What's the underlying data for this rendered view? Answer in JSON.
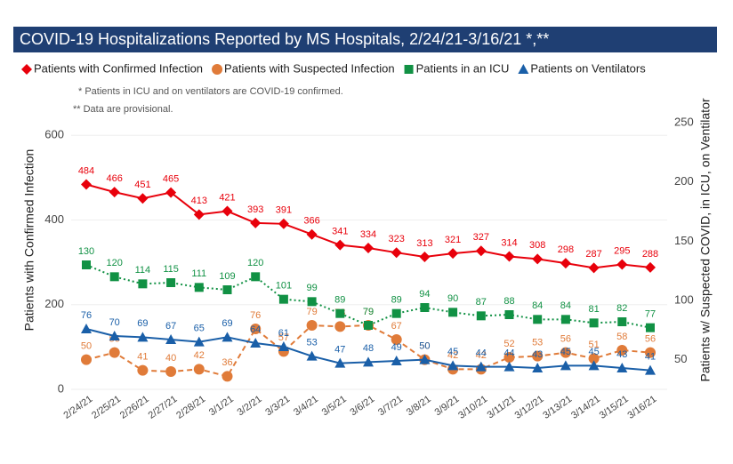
{
  "chart_data": {
    "type": "line",
    "title": "COVID-19 Hospitalizations Reported by MS Hospitals, 2/24/21-3/16/21 *,**",
    "notes": [
      "* Patients in ICU and on ventilators are COVID-19 confirmed.",
      "** Data are provisional."
    ],
    "ylabel": "Patients with Confirmed Infection",
    "y2label": "Patients w/ Suspected COVID, in ICU, on Ventilator",
    "categories": [
      "2/24/21",
      "2/25/21",
      "2/26/21",
      "2/27/21",
      "2/28/21",
      "3/1/21",
      "3/2/21",
      "3/3/21",
      "3/4/21",
      "3/5/21",
      "3/6/21",
      "3/7/21",
      "3/8/21",
      "3/9/21",
      "3/10/21",
      "3/11/21",
      "3/12/21",
      "3/13/21",
      "3/14/21",
      "3/15/21",
      "3/16/21"
    ],
    "ylim": [
      0,
      630
    ],
    "yticks": [
      0,
      200,
      400,
      600
    ],
    "y2lim": [
      25,
      250
    ],
    "y2ticks": [
      50,
      100,
      150,
      200,
      250
    ],
    "grid": true,
    "series": [
      {
        "name": "Patients with Confirmed Infection",
        "color": "#e8000b",
        "marker": "diamond",
        "line_style": "solid",
        "values": [
          484,
          466,
          451,
          465,
          413,
          421,
          393,
          391,
          366,
          341,
          334,
          323,
          313,
          321,
          327,
          314,
          308,
          298,
          287,
          295,
          288
        ]
      },
      {
        "name": "Patients with Suspected Infection",
        "color": "#e07b39",
        "marker": "circle",
        "line_style": "dashed",
        "axis": "y2",
        "values": [
          50,
          56,
          41,
          40,
          42,
          36,
          76,
          57,
          79,
          78,
          79,
          67,
          50,
          42,
          42,
          52,
          53,
          56,
          51,
          58,
          56
        ]
      },
      {
        "name": "Patients in an ICU",
        "color": "#119144",
        "marker": "square",
        "line_style": "dotted",
        "axis": "y2",
        "values": [
          130,
          120,
          114,
          115,
          111,
          109,
          120,
          101,
          99,
          89,
          79,
          89,
          94,
          90,
          87,
          88,
          84,
          84,
          81,
          82,
          77
        ]
      },
      {
        "name": "Patients on Ventilators",
        "color": "#1a5fa8",
        "marker": "triangle",
        "line_style": "solid",
        "axis": "y2",
        "values": [
          76,
          70,
          69,
          67,
          65,
          69,
          64,
          61,
          53,
          47,
          48,
          49,
          50,
          45,
          44,
          44,
          43,
          45,
          45,
          43,
          41
        ]
      }
    ]
  }
}
